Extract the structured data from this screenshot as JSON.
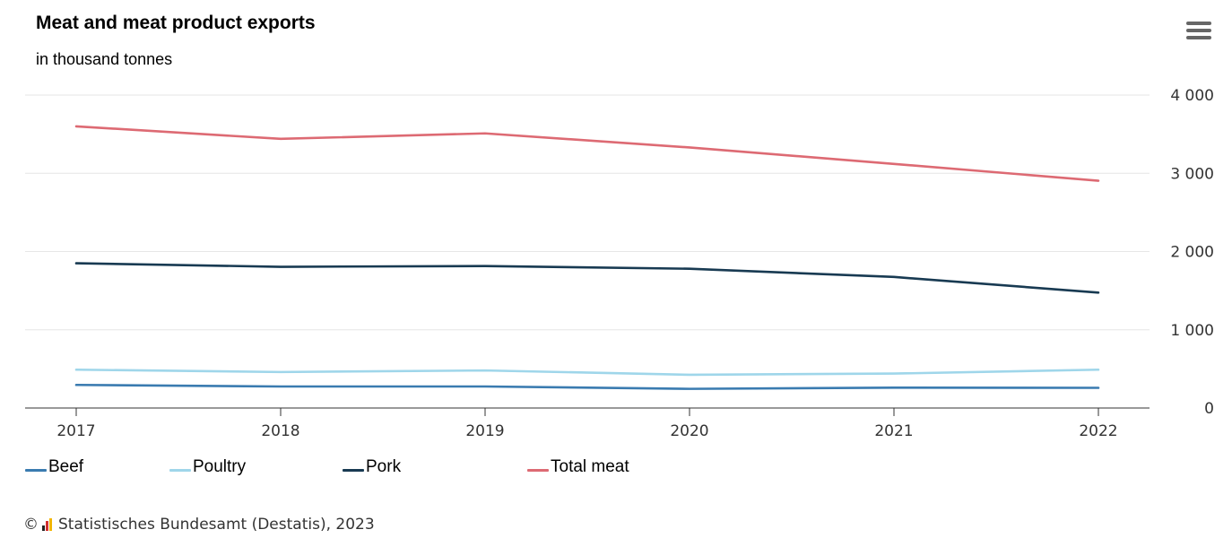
{
  "chart_data": {
    "type": "line",
    "title": "Meat and meat product exports",
    "subtitle": "in thousand tonnes",
    "x": [
      "2017",
      "2018",
      "2019",
      "2020",
      "2021",
      "2022"
    ],
    "ylim": [
      0,
      4000
    ],
    "yticks": [
      0,
      1000,
      2000,
      3000,
      4000
    ],
    "ytick_labels": [
      "0",
      "1 000",
      "2 000",
      "3 000",
      "4 000"
    ],
    "y_axis_side": "right",
    "grid": true,
    "legend_position": "bottom",
    "series": [
      {
        "name": "Beef",
        "color": "#3a7bb0",
        "values": [
          295,
          275,
          275,
          245,
          260,
          258
        ]
      },
      {
        "name": "Poultry",
        "color": "#9fd6ea",
        "values": [
          490,
          460,
          480,
          425,
          440,
          490
        ]
      },
      {
        "name": "Pork",
        "color": "#183a52",
        "values": [
          1850,
          1805,
          1815,
          1780,
          1675,
          1475
        ]
      },
      {
        "name": "Total meat",
        "color": "#dd6a73",
        "values": [
          3600,
          3440,
          3510,
          3330,
          3120,
          2905
        ]
      }
    ]
  },
  "header": {
    "menu_icon": "hamburger-icon"
  },
  "footer": {
    "copyright_symbol": "©",
    "logo_icon": "destatis-logo-icon",
    "text": "Statistisches Bundesamt (Destatis), 2023"
  }
}
